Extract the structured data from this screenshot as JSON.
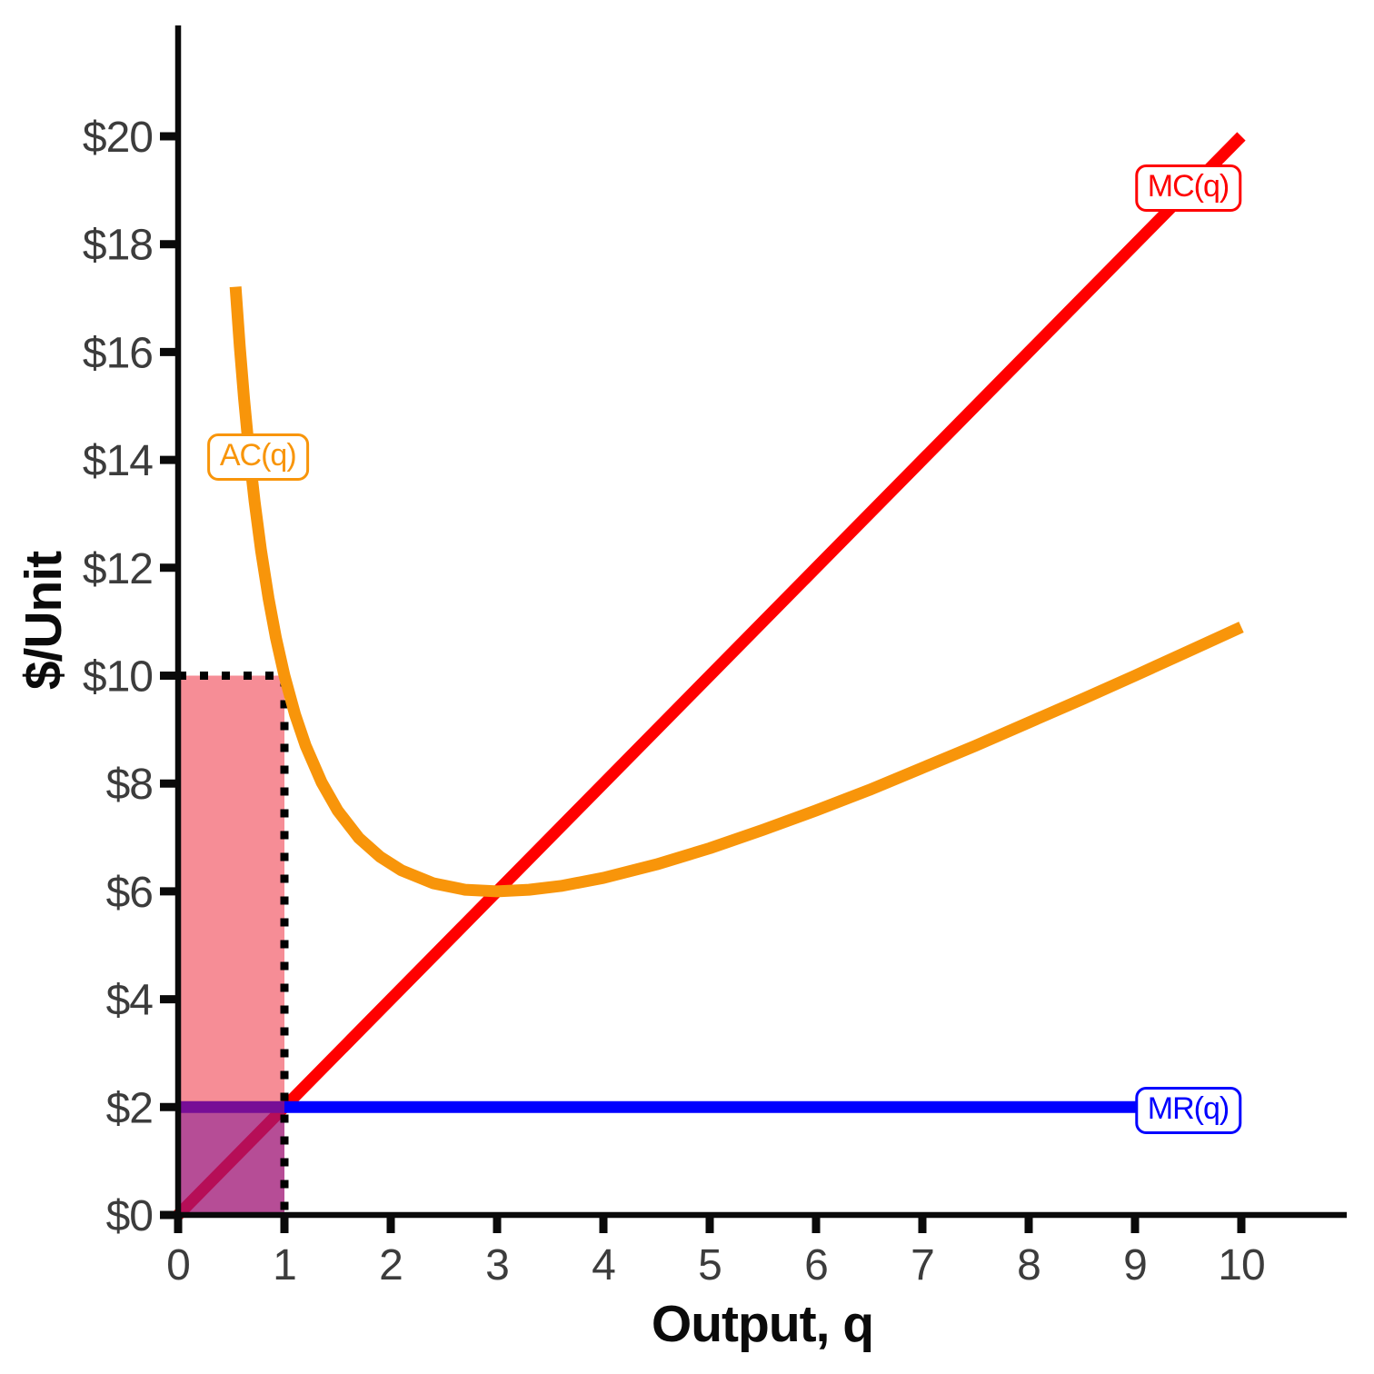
{
  "chart_data": {
    "type": "line",
    "xlabel": "Output, q",
    "ylabel": "$/Unit",
    "xlim": [
      0,
      11
    ],
    "ylim": [
      0,
      22
    ],
    "grid": false,
    "legend_position": "inline-boxed-labels",
    "x_ticks": {
      "values": [
        0,
        1,
        2,
        3,
        4,
        5,
        6,
        7,
        8,
        9,
        10
      ],
      "labels": [
        "0",
        "1",
        "2",
        "3",
        "4",
        "5",
        "6",
        "7",
        "8",
        "9",
        "10"
      ]
    },
    "y_ticks": {
      "values": [
        0,
        2,
        4,
        6,
        8,
        10,
        12,
        14,
        16,
        18,
        20
      ],
      "labels": [
        "$0",
        "$2",
        "$4",
        "$6",
        "$8",
        "$10",
        "$12",
        "$14",
        "$16",
        "$18",
        "$20"
      ]
    },
    "series": [
      {
        "name": "MC(q)",
        "color": "#ff0000",
        "width": 13,
        "layer": 0,
        "linecap": "butt",
        "x": [
          0,
          10
        ],
        "values": [
          0,
          20
        ],
        "label": {
          "text": "MC(q)",
          "x": 9.5,
          "y": 19.04
        }
      },
      {
        "name": "AC(q)",
        "color": "#f8950a",
        "width": 13,
        "layer": 2,
        "linecap": "butt",
        "x": [
          0.54,
          0.58,
          0.62,
          0.67,
          0.72,
          0.78,
          0.85,
          0.92,
          1.0,
          1.1,
          1.2,
          1.35,
          1.5,
          1.7,
          1.9,
          2.1,
          2.4,
          2.7,
          3.0,
          3.3,
          3.6,
          4.0,
          4.5,
          5.0,
          5.5,
          6.0,
          6.5,
          7.0,
          7.5,
          8.0,
          8.5,
          9.0,
          9.5,
          10.0
        ],
        "values": [
          17.21,
          16.1,
          15.14,
          14.1,
          13.22,
          12.32,
          11.44,
          10.7,
          10.0,
          9.28,
          8.7,
          8.02,
          7.5,
          6.99,
          6.64,
          6.39,
          6.15,
          6.03,
          6.0,
          6.03,
          6.1,
          6.25,
          6.5,
          6.8,
          7.14,
          7.5,
          7.88,
          8.29,
          8.7,
          9.13,
          9.56,
          10.0,
          10.45,
          10.9
        ],
        "label": {
          "text": "AC(q)",
          "x": 0.75,
          "y": 14.05
        }
      },
      {
        "name": "MR(q)",
        "color": "#0000ff",
        "width": 13,
        "layer": 0,
        "linecap": "butt",
        "x": [
          0,
          10
        ],
        "values": [
          2,
          2
        ],
        "label": {
          "text": "MR(q)",
          "x": 9.5,
          "y": 1.94
        }
      }
    ],
    "regions": [
      {
        "name": "revenue-rect",
        "x0": 0,
        "x1": 1,
        "y0": 0,
        "y1": 2,
        "color": "#0000ff",
        "opacity": 0.5,
        "dotted_border": false
      },
      {
        "name": "total-cost-rect",
        "x0": 0,
        "x1": 1,
        "y0": 0,
        "y1": 10,
        "color": "#ed1c2e",
        "opacity": 0.5,
        "dotted_border": true
      }
    ],
    "dotted_border_color": "#000000",
    "axis_color": "#0a0a0a",
    "tick_label_color": "#3c3c3c"
  }
}
